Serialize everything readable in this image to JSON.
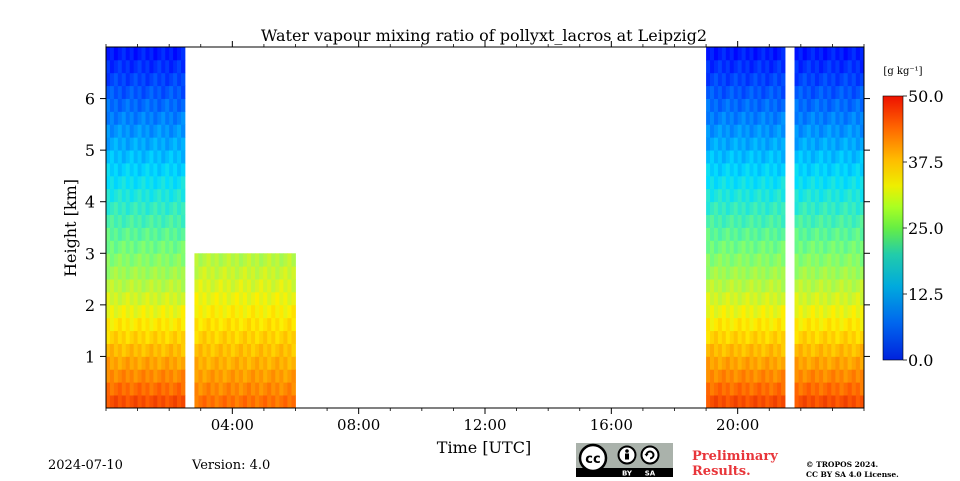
{
  "chart_data": {
    "type": "heatmap",
    "title": "Water vapour mixing ratio of pollyxt_lacros at Leipzig2",
    "xlabel": "Time [UTC]",
    "ylabel": "Height [km]",
    "x_unit": "hours UTC",
    "xlim": [
      0,
      24
    ],
    "ylim": [
      0,
      7
    ],
    "x_ticks": [
      4,
      8,
      12,
      16,
      20
    ],
    "x_tick_labels": [
      "04:00",
      "08:00",
      "12:00",
      "16:00",
      "20:00"
    ],
    "y_ticks": [
      1,
      2,
      3,
      4,
      5,
      6
    ],
    "y_tick_labels": [
      "1",
      "2",
      "3",
      "4",
      "5",
      "6"
    ],
    "colorbar": {
      "label": "[g kg⁻¹]",
      "min": 0.0,
      "max": 50.0,
      "ticks": [
        0.0,
        12.5,
        25.0,
        37.5,
        50.0
      ],
      "tick_labels": [
        "0.0",
        "12.5",
        "25.0",
        "37.5",
        "50.0"
      ],
      "colormap": "jet"
    },
    "data_segments": [
      {
        "start_hour": 0.0,
        "end_hour": 2.5,
        "max_height_km": 7.0,
        "surface_value": 45,
        "top_value": 6
      },
      {
        "start_hour": 2.8,
        "end_hour": 6.0,
        "max_height_km": 3.0,
        "surface_value": 42,
        "top_value": 28
      },
      {
        "start_hour": 19.0,
        "end_hour": 21.5,
        "max_height_km": 7.0,
        "surface_value": 45,
        "top_value": 6
      },
      {
        "start_hour": 21.8,
        "end_hour": 24.0,
        "max_height_km": 7.0,
        "surface_value": 45,
        "top_value": 6
      }
    ]
  },
  "footer": {
    "date": "2024-07-10",
    "version": "Version: 4.0",
    "license_badge": "cc-by-sa-icon",
    "preliminary_line1": "Preliminary",
    "preliminary_line2": "Results.",
    "copyright_line1": "© TROPOS 2024.",
    "copyright_line2": "CC BY SA 4.0 License."
  },
  "colors": {
    "preliminary_text": "#e8353a"
  }
}
